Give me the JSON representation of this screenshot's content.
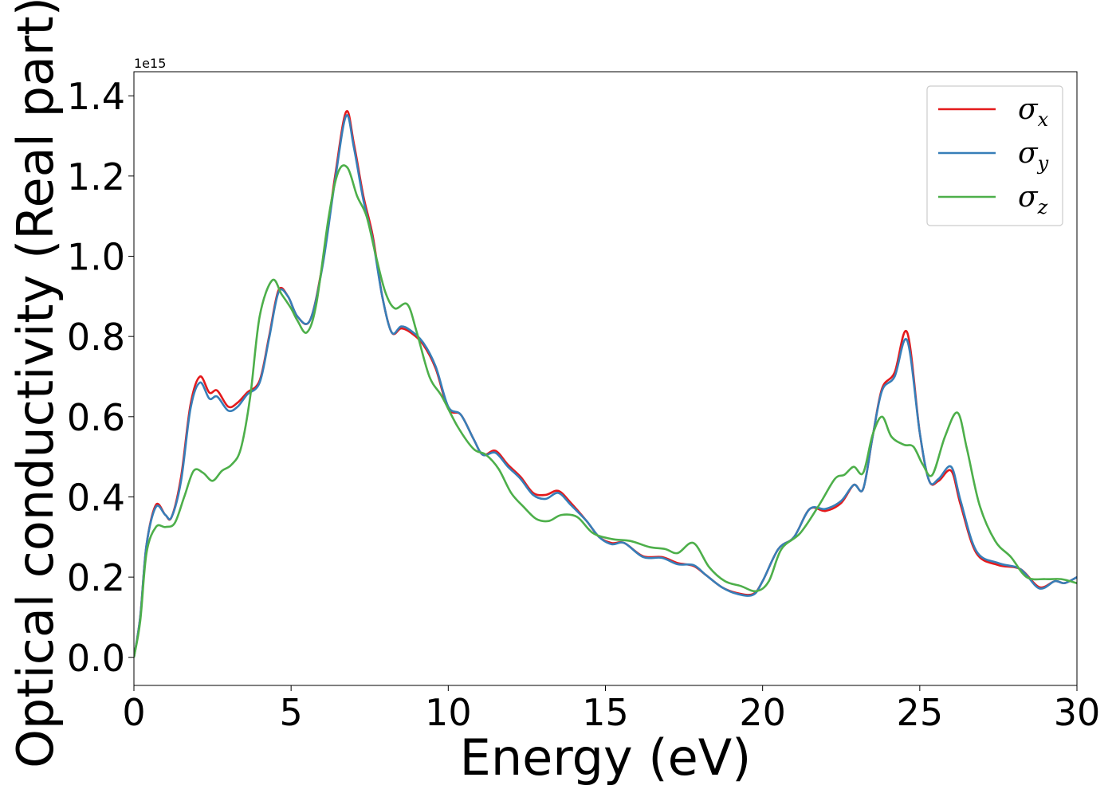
{
  "chart_data": {
    "type": "line",
    "xlabel": "Energy (eV)",
    "ylabel": "Optical conductivity (Real part)",
    "y_offset_text": "1e15",
    "xlim": [
      0,
      30
    ],
    "ylim": [
      -0.07,
      1.46
    ],
    "x_ticks": [
      0,
      5,
      10,
      15,
      20,
      25,
      30
    ],
    "x_tick_labels": [
      "0",
      "5",
      "10",
      "15",
      "20",
      "25",
      "30"
    ],
    "y_ticks": [
      0.0,
      0.2,
      0.4,
      0.6,
      0.8,
      1.0,
      1.2,
      1.4
    ],
    "y_tick_labels": [
      "0.0",
      "0.2",
      "0.4",
      "0.6",
      "0.8",
      "1.0",
      "1.2",
      "1.4"
    ],
    "grid": false,
    "legend_position": "top-right",
    "series": [
      {
        "name": "σ",
        "subscript": "x",
        "color": "#e41a1c",
        "points": [
          [
            0,
            0.0
          ],
          [
            0.2,
            0.1
          ],
          [
            0.4,
            0.28
          ],
          [
            0.7,
            0.38
          ],
          [
            1.0,
            0.355
          ],
          [
            1.2,
            0.35
          ],
          [
            1.5,
            0.45
          ],
          [
            1.8,
            0.63
          ],
          [
            2.1,
            0.7
          ],
          [
            2.4,
            0.66
          ],
          [
            2.65,
            0.665
          ],
          [
            3.0,
            0.625
          ],
          [
            3.3,
            0.635
          ],
          [
            3.6,
            0.66
          ],
          [
            4.0,
            0.69
          ],
          [
            4.3,
            0.8
          ],
          [
            4.6,
            0.915
          ],
          [
            4.9,
            0.9
          ],
          [
            5.2,
            0.85
          ],
          [
            5.6,
            0.84
          ],
          [
            6.0,
            0.98
          ],
          [
            6.4,
            1.2
          ],
          [
            6.75,
            1.36
          ],
          [
            7.0,
            1.28
          ],
          [
            7.3,
            1.15
          ],
          [
            7.6,
            1.05
          ],
          [
            7.9,
            0.9
          ],
          [
            8.2,
            0.81
          ],
          [
            8.5,
            0.82
          ],
          [
            8.8,
            0.81
          ],
          [
            9.2,
            0.78
          ],
          [
            9.6,
            0.72
          ],
          [
            10.0,
            0.62
          ],
          [
            10.4,
            0.605
          ],
          [
            10.8,
            0.545
          ],
          [
            11.1,
            0.505
          ],
          [
            11.5,
            0.515
          ],
          [
            11.9,
            0.48
          ],
          [
            12.3,
            0.45
          ],
          [
            12.7,
            0.41
          ],
          [
            13.1,
            0.405
          ],
          [
            13.5,
            0.415
          ],
          [
            13.9,
            0.385
          ],
          [
            14.4,
            0.34
          ],
          [
            14.8,
            0.3
          ],
          [
            15.2,
            0.285
          ],
          [
            15.6,
            0.285
          ],
          [
            16.2,
            0.252
          ],
          [
            16.8,
            0.25
          ],
          [
            17.3,
            0.235
          ],
          [
            17.8,
            0.228
          ],
          [
            18.2,
            0.205
          ],
          [
            18.7,
            0.175
          ],
          [
            19.2,
            0.16
          ],
          [
            19.7,
            0.158
          ],
          [
            20.0,
            0.19
          ],
          [
            20.5,
            0.27
          ],
          [
            21.0,
            0.3
          ],
          [
            21.5,
            0.37
          ],
          [
            22.0,
            0.365
          ],
          [
            22.5,
            0.385
          ],
          [
            22.9,
            0.43
          ],
          [
            23.2,
            0.42
          ],
          [
            23.5,
            0.55
          ],
          [
            23.8,
            0.67
          ],
          [
            24.2,
            0.71
          ],
          [
            24.6,
            0.81
          ],
          [
            25.0,
            0.56
          ],
          [
            25.3,
            0.44
          ],
          [
            25.6,
            0.44
          ],
          [
            26.0,
            0.465
          ],
          [
            26.3,
            0.38
          ],
          [
            26.8,
            0.26
          ],
          [
            27.5,
            0.23
          ],
          [
            28.2,
            0.22
          ],
          [
            28.8,
            0.175
          ],
          [
            29.3,
            0.19
          ],
          [
            29.6,
            0.185
          ],
          [
            30.0,
            0.2
          ]
        ]
      },
      {
        "name": "σ",
        "subscript": "y",
        "color": "#377eb8",
        "points": [
          [
            0,
            0.0
          ],
          [
            0.2,
            0.1
          ],
          [
            0.4,
            0.28
          ],
          [
            0.7,
            0.375
          ],
          [
            1.0,
            0.355
          ],
          [
            1.2,
            0.35
          ],
          [
            1.5,
            0.44
          ],
          [
            1.8,
            0.62
          ],
          [
            2.1,
            0.685
          ],
          [
            2.4,
            0.645
          ],
          [
            2.65,
            0.65
          ],
          [
            3.0,
            0.615
          ],
          [
            3.3,
            0.625
          ],
          [
            3.6,
            0.655
          ],
          [
            4.0,
            0.685
          ],
          [
            4.3,
            0.795
          ],
          [
            4.6,
            0.91
          ],
          [
            4.9,
            0.9
          ],
          [
            5.2,
            0.85
          ],
          [
            5.6,
            0.84
          ],
          [
            6.0,
            0.975
          ],
          [
            6.4,
            1.19
          ],
          [
            6.75,
            1.35
          ],
          [
            7.0,
            1.27
          ],
          [
            7.3,
            1.14
          ],
          [
            7.6,
            1.04
          ],
          [
            7.9,
            0.9
          ],
          [
            8.2,
            0.81
          ],
          [
            8.5,
            0.825
          ],
          [
            8.8,
            0.815
          ],
          [
            9.2,
            0.785
          ],
          [
            9.6,
            0.725
          ],
          [
            10.0,
            0.625
          ],
          [
            10.4,
            0.605
          ],
          [
            10.8,
            0.545
          ],
          [
            11.1,
            0.505
          ],
          [
            11.5,
            0.51
          ],
          [
            11.9,
            0.475
          ],
          [
            12.3,
            0.445
          ],
          [
            12.7,
            0.405
          ],
          [
            13.1,
            0.395
          ],
          [
            13.5,
            0.41
          ],
          [
            13.9,
            0.38
          ],
          [
            14.4,
            0.34
          ],
          [
            14.8,
            0.3
          ],
          [
            15.2,
            0.282
          ],
          [
            15.6,
            0.285
          ],
          [
            16.2,
            0.25
          ],
          [
            16.8,
            0.248
          ],
          [
            17.3,
            0.232
          ],
          [
            17.8,
            0.23
          ],
          [
            18.2,
            0.205
          ],
          [
            18.7,
            0.175
          ],
          [
            19.2,
            0.158
          ],
          [
            19.7,
            0.156
          ],
          [
            20.0,
            0.19
          ],
          [
            20.5,
            0.27
          ],
          [
            21.0,
            0.3
          ],
          [
            21.5,
            0.37
          ],
          [
            22.0,
            0.37
          ],
          [
            22.5,
            0.39
          ],
          [
            22.9,
            0.43
          ],
          [
            23.2,
            0.42
          ],
          [
            23.5,
            0.55
          ],
          [
            23.8,
            0.665
          ],
          [
            24.2,
            0.7
          ],
          [
            24.6,
            0.79
          ],
          [
            25.0,
            0.56
          ],
          [
            25.3,
            0.44
          ],
          [
            25.6,
            0.445
          ],
          [
            26.0,
            0.475
          ],
          [
            26.3,
            0.39
          ],
          [
            26.8,
            0.265
          ],
          [
            27.5,
            0.235
          ],
          [
            28.2,
            0.22
          ],
          [
            28.8,
            0.172
          ],
          [
            29.3,
            0.19
          ],
          [
            29.6,
            0.185
          ],
          [
            30.0,
            0.2
          ]
        ]
      },
      {
        "name": "σ",
        "subscript": "z",
        "color": "#4daf4a",
        "points": [
          [
            0,
            0.0
          ],
          [
            0.2,
            0.09
          ],
          [
            0.4,
            0.26
          ],
          [
            0.7,
            0.325
          ],
          [
            1.0,
            0.325
          ],
          [
            1.3,
            0.335
          ],
          [
            1.6,
            0.4
          ],
          [
            1.9,
            0.465
          ],
          [
            2.2,
            0.46
          ],
          [
            2.5,
            0.44
          ],
          [
            2.8,
            0.465
          ],
          [
            3.1,
            0.48
          ],
          [
            3.4,
            0.52
          ],
          [
            3.7,
            0.65
          ],
          [
            4.0,
            0.85
          ],
          [
            4.4,
            0.94
          ],
          [
            4.7,
            0.905
          ],
          [
            5.0,
            0.87
          ],
          [
            5.2,
            0.84
          ],
          [
            5.5,
            0.81
          ],
          [
            5.8,
            0.88
          ],
          [
            6.2,
            1.1
          ],
          [
            6.5,
            1.21
          ],
          [
            6.8,
            1.22
          ],
          [
            7.1,
            1.15
          ],
          [
            7.4,
            1.1
          ],
          [
            7.7,
            1.0
          ],
          [
            8.0,
            0.91
          ],
          [
            8.3,
            0.87
          ],
          [
            8.7,
            0.88
          ],
          [
            9.0,
            0.81
          ],
          [
            9.4,
            0.7
          ],
          [
            9.8,
            0.65
          ],
          [
            10.3,
            0.575
          ],
          [
            10.8,
            0.52
          ],
          [
            11.2,
            0.505
          ],
          [
            11.6,
            0.47
          ],
          [
            12.0,
            0.41
          ],
          [
            12.4,
            0.375
          ],
          [
            12.8,
            0.345
          ],
          [
            13.2,
            0.34
          ],
          [
            13.6,
            0.355
          ],
          [
            14.1,
            0.35
          ],
          [
            14.6,
            0.31
          ],
          [
            15.2,
            0.295
          ],
          [
            15.8,
            0.29
          ],
          [
            16.4,
            0.275
          ],
          [
            16.9,
            0.27
          ],
          [
            17.3,
            0.26
          ],
          [
            17.8,
            0.285
          ],
          [
            18.3,
            0.225
          ],
          [
            18.8,
            0.19
          ],
          [
            19.3,
            0.178
          ],
          [
            19.8,
            0.165
          ],
          [
            20.2,
            0.19
          ],
          [
            20.6,
            0.27
          ],
          [
            21.2,
            0.31
          ],
          [
            21.8,
            0.38
          ],
          [
            22.3,
            0.445
          ],
          [
            22.6,
            0.455
          ],
          [
            22.9,
            0.475
          ],
          [
            23.2,
            0.46
          ],
          [
            23.5,
            0.555
          ],
          [
            23.8,
            0.6
          ],
          [
            24.1,
            0.55
          ],
          [
            24.5,
            0.53
          ],
          [
            24.8,
            0.525
          ],
          [
            25.1,
            0.48
          ],
          [
            25.4,
            0.455
          ],
          [
            25.8,
            0.55
          ],
          [
            26.2,
            0.61
          ],
          [
            26.5,
            0.52
          ],
          [
            26.9,
            0.38
          ],
          [
            27.4,
            0.29
          ],
          [
            27.9,
            0.25
          ],
          [
            28.4,
            0.2
          ],
          [
            29.0,
            0.195
          ],
          [
            29.5,
            0.195
          ],
          [
            30.0,
            0.185
          ]
        ]
      }
    ]
  }
}
